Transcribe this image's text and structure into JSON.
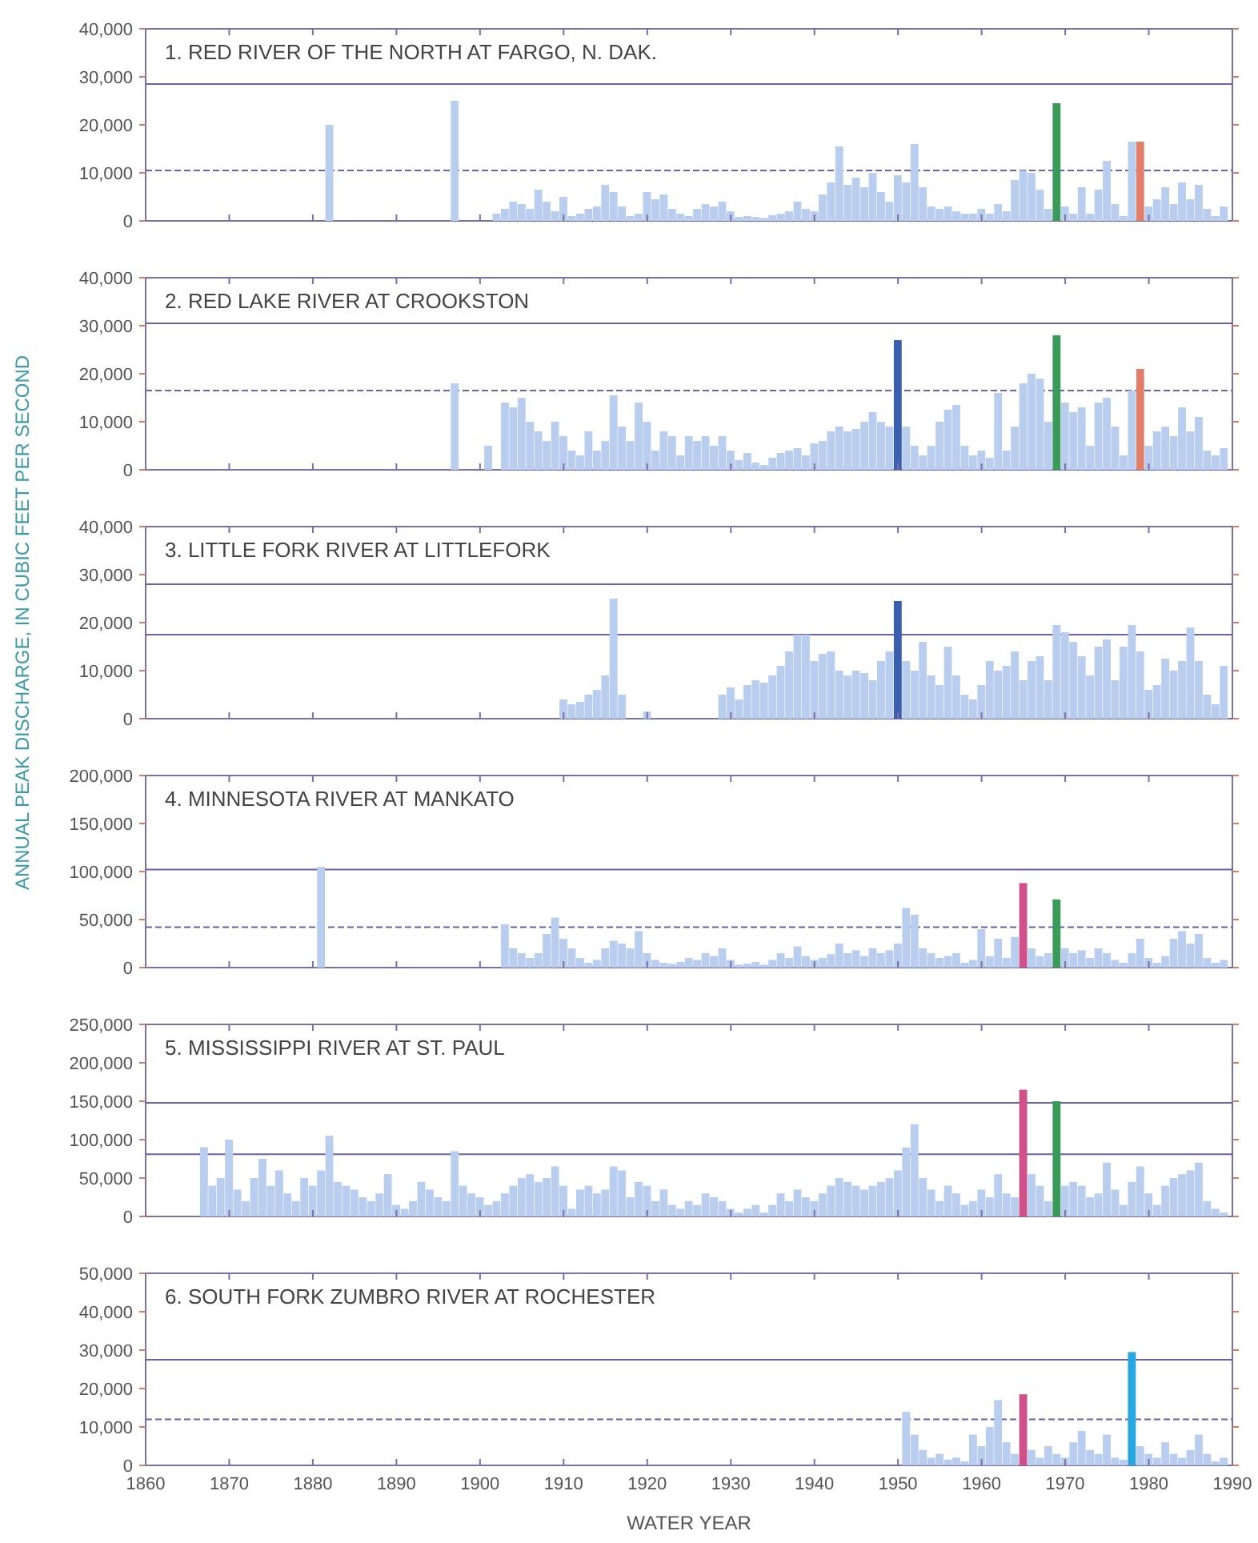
{
  "chart_data": [
    {
      "type": "bar",
      "title": "1.   RED RIVER OF THE NORTH AT FARGO, N. DAK.",
      "xlim": [
        1860,
        1990
      ],
      "xticks": [
        1860,
        1870,
        1880,
        1890,
        1900,
        1910,
        1920,
        1930,
        1940,
        1950,
        1960,
        1970,
        1980,
        1990
      ],
      "ylim": [
        0,
        40000
      ],
      "yticks": [
        {
          "value": 0,
          "label": "0"
        },
        {
          "value": 10000,
          "label": "10,000"
        },
        {
          "value": 20000,
          "label": "20,000"
        },
        {
          "value": 30000,
          "label": "30,000"
        },
        {
          "value": 40000,
          "label": "40,000"
        }
      ],
      "tick_labels": "y",
      "ref_lines": [
        {
          "axis": "y",
          "value": 28500,
          "line_style": "solid"
        },
        {
          "axis": "y",
          "value": 10500,
          "line_style": "dashed"
        }
      ],
      "series": [
        {
          "color": "#b9cdee",
          "x": [
            1882,
            1897,
            1902,
            1903,
            1904,
            1905,
            1906,
            1907,
            1908,
            1909,
            1910,
            1911,
            1912,
            1913,
            1914,
            1915,
            1916,
            1917,
            1918,
            1919,
            1920,
            1921,
            1922,
            1923,
            1924,
            1925,
            1926,
            1927,
            1928,
            1929,
            1930,
            1931,
            1932,
            1933,
            1934,
            1935,
            1936,
            1937,
            1938,
            1939,
            1940,
            1941,
            1942,
            1943,
            1944,
            1945,
            1946,
            1947,
            1948,
            1949,
            1950,
            1951,
            1952,
            1953,
            1954,
            1955,
            1956,
            1957,
            1958,
            1959,
            1960,
            1961,
            1962,
            1963,
            1964,
            1965,
            1966,
            1967,
            1968,
            1969,
            1970,
            1971,
            1972,
            1973,
            1974,
            1975,
            1976,
            1977,
            1978,
            1979,
            1980,
            1981,
            1982,
            1983,
            1984,
            1985,
            1986,
            1987,
            1988,
            1989
          ],
          "values": [
            20000,
            25000,
            1500,
            2500,
            4000,
            3500,
            2500,
            6500,
            4000,
            2000,
            5000,
            1000,
            1500,
            2500,
            3000,
            7500,
            6000,
            3000,
            1000,
            1500,
            6000,
            4500,
            5500,
            2500,
            1500,
            1000,
            2500,
            3500,
            3000,
            4000,
            2000,
            800,
            1000,
            800,
            600,
            1200,
            1500,
            2000,
            4000,
            2500,
            2000,
            5500,
            8000,
            15500,
            7500,
            9000,
            7000,
            10000,
            6000,
            4000,
            9500,
            8000,
            16000,
            7000,
            3000,
            2500,
            3000,
            2000,
            1500,
            1500,
            2500,
            1500,
            3500,
            2000,
            8500,
            10500,
            10000,
            6500,
            2500,
            null,
            3000,
            1500,
            7000,
            1500,
            6500,
            12500,
            3500,
            1000,
            16500,
            null,
            3000,
            4500,
            7000,
            3500,
            8000,
            4500,
            7500,
            2500,
            1000,
            3000
          ]
        },
        {
          "color": "#3a9a5a",
          "x": [
            1969
          ],
          "values": [
            24500
          ]
        },
        {
          "color": "#e0806a",
          "x": [
            1979
          ],
          "values": [
            16500
          ]
        }
      ]
    },
    {
      "type": "bar",
      "title": "2.   RED LAKE RIVER AT CROOKSTON",
      "xlim": [
        1860,
        1990
      ],
      "xticks": [
        1860,
        1870,
        1880,
        1890,
        1900,
        1910,
        1920,
        1930,
        1940,
        1950,
        1960,
        1970,
        1980,
        1990
      ],
      "ylim": [
        0,
        40000
      ],
      "yticks": [
        {
          "value": 0,
          "label": "0"
        },
        {
          "value": 10000,
          "label": "10,000"
        },
        {
          "value": 20000,
          "label": "20,000"
        },
        {
          "value": 30000,
          "label": "30,000"
        },
        {
          "value": 40000,
          "label": "40,000"
        }
      ],
      "tick_labels": "y",
      "ref_lines": [
        {
          "axis": "y",
          "value": 30500,
          "line_style": "solid"
        },
        {
          "axis": "y",
          "value": 16500,
          "line_style": "dashed"
        }
      ],
      "series": [
        {
          "color": "#b9cdee",
          "x": [
            1897,
            1901,
            1902,
            1903,
            1904,
            1905,
            1906,
            1907,
            1908,
            1909,
            1910,
            1911,
            1912,
            1913,
            1914,
            1915,
            1916,
            1917,
            1918,
            1919,
            1920,
            1921,
            1922,
            1923,
            1924,
            1925,
            1926,
            1927,
            1928,
            1929,
            1930,
            1931,
            1932,
            1933,
            1934,
            1935,
            1936,
            1937,
            1938,
            1939,
            1940,
            1941,
            1942,
            1943,
            1944,
            1945,
            1946,
            1947,
            1948,
            1949,
            1950,
            1951,
            1952,
            1953,
            1954,
            1955,
            1956,
            1957,
            1958,
            1959,
            1960,
            1961,
            1962,
            1963,
            1964,
            1965,
            1966,
            1967,
            1968,
            1969,
            1970,
            1971,
            1972,
            1973,
            1974,
            1975,
            1976,
            1977,
            1978,
            1979,
            1980,
            1981,
            1982,
            1983,
            1984,
            1985,
            1986,
            1987,
            1988,
            1989
          ],
          "values": [
            18000,
            5000,
            null,
            14000,
            13000,
            15000,
            10000,
            8000,
            6000,
            10000,
            7000,
            4000,
            3000,
            8000,
            4000,
            6000,
            15500,
            9000,
            6000,
            14000,
            10000,
            4000,
            8000,
            7000,
            3000,
            7000,
            6000,
            7000,
            5000,
            7000,
            4000,
            2000,
            3500,
            1500,
            1000,
            2500,
            3500,
            4000,
            4500,
            3000,
            5500,
            6000,
            8000,
            9000,
            8000,
            8500,
            10000,
            12000,
            10000,
            9000,
            null,
            9000,
            5000,
            3000,
            5000,
            10000,
            12500,
            13500,
            5000,
            3000,
            4000,
            2500,
            16000,
            4000,
            9000,
            18000,
            20000,
            19000,
            10000,
            null,
            14000,
            12000,
            13000,
            5000,
            14000,
            15000,
            9000,
            3000,
            16500,
            null,
            5000,
            8000,
            9000,
            7000,
            13000,
            8000,
            11000,
            4000,
            3000,
            4500
          ]
        },
        {
          "color": "#3a5fb0",
          "x": [
            1950
          ],
          "values": [
            27000
          ]
        },
        {
          "color": "#3a9a5a",
          "x": [
            1969
          ],
          "values": [
            28000
          ]
        },
        {
          "color": "#e0806a",
          "x": [
            1979
          ],
          "values": [
            21000
          ]
        }
      ]
    },
    {
      "type": "bar",
      "title": "3.   LITTLE FORK RIVER AT LITTLEFORK",
      "ylabel": "ANNUAL PEAK DISCHARGE, IN CUBIC FEET PER SECOND",
      "xlim": [
        1860,
        1990
      ],
      "xticks": [
        1860,
        1870,
        1880,
        1890,
        1900,
        1910,
        1920,
        1930,
        1940,
        1950,
        1960,
        1970,
        1980,
        1990
      ],
      "ylim": [
        0,
        40000
      ],
      "yticks": [
        {
          "value": 0,
          "label": "0"
        },
        {
          "value": 10000,
          "label": "10,000"
        },
        {
          "value": 20000,
          "label": "20,000"
        },
        {
          "value": 30000,
          "label": "30,000"
        },
        {
          "value": 40000,
          "label": "40,000"
        }
      ],
      "tick_labels": "y",
      "ref_lines": [
        {
          "axis": "y",
          "value": 28000,
          "line_style": "solid"
        },
        {
          "axis": "y",
          "value": 17500,
          "line_style": "solid"
        }
      ],
      "series": [
        {
          "color": "#b9cdee",
          "x": [
            1910,
            1911,
            1912,
            1913,
            1914,
            1915,
            1916,
            1917,
            1920,
            1929,
            1930,
            1931,
            1932,
            1933,
            1934,
            1935,
            1936,
            1937,
            1938,
            1939,
            1940,
            1941,
            1942,
            1943,
            1944,
            1945,
            1946,
            1947,
            1948,
            1949,
            1950,
            1951,
            1952,
            1953,
            1954,
            1955,
            1956,
            1957,
            1958,
            1959,
            1960,
            1961,
            1962,
            1963,
            1964,
            1965,
            1966,
            1967,
            1968,
            1969,
            1970,
            1971,
            1972,
            1973,
            1974,
            1975,
            1976,
            1977,
            1978,
            1979,
            1980,
            1981,
            1982,
            1983,
            1984,
            1985,
            1986,
            1987,
            1988,
            1989
          ],
          "values": [
            4000,
            3000,
            3500,
            5000,
            6000,
            9000,
            25000,
            5000,
            1500,
            5000,
            6500,
            4000,
            7000,
            8000,
            7500,
            9000,
            11000,
            14000,
            17500,
            17500,
            12000,
            13500,
            14000,
            10000,
            9000,
            10000,
            9500,
            8000,
            12000,
            14000,
            null,
            12000,
            10000,
            16000,
            9000,
            7000,
            15000,
            9000,
            5000,
            4000,
            7000,
            12000,
            10000,
            11000,
            14000,
            8000,
            12000,
            13000,
            8000,
            19500,
            18000,
            16000,
            13000,
            9000,
            15000,
            16500,
            8000,
            15000,
            19500,
            14000,
            6000,
            7000,
            12500,
            10000,
            12000,
            19000,
            12000,
            5000,
            3000,
            11000
          ]
        },
        {
          "color": "#3a5fb0",
          "x": [
            1950
          ],
          "values": [
            24500
          ]
        }
      ]
    },
    {
      "type": "bar",
      "title": "4.   MINNESOTA RIVER AT MANKATO",
      "xlim": [
        1860,
        1990
      ],
      "xticks": [
        1860,
        1870,
        1880,
        1890,
        1900,
        1910,
        1920,
        1930,
        1940,
        1950,
        1960,
        1970,
        1980,
        1990
      ],
      "ylim": [
        0,
        200000
      ],
      "yticks": [
        {
          "value": 0,
          "label": "0"
        },
        {
          "value": 50000,
          "label": "50,000"
        },
        {
          "value": 100000,
          "label": "100,000"
        },
        {
          "value": 150000,
          "label": "150,000"
        },
        {
          "value": 200000,
          "label": "200,000"
        }
      ],
      "tick_labels": "y",
      "ref_lines": [
        {
          "axis": "y",
          "value": 102000,
          "line_style": "solid"
        },
        {
          "axis": "y",
          "value": 42000,
          "line_style": "dashed"
        }
      ],
      "series": [
        {
          "color": "#b9cdee",
          "x": [
            1881,
            1903,
            1904,
            1905,
            1906,
            1907,
            1908,
            1909,
            1910,
            1911,
            1912,
            1913,
            1914,
            1915,
            1916,
            1917,
            1918,
            1919,
            1920,
            1921,
            1922,
            1923,
            1924,
            1925,
            1926,
            1927,
            1928,
            1929,
            1930,
            1931,
            1932,
            1933,
            1934,
            1935,
            1936,
            1937,
            1938,
            1939,
            1940,
            1941,
            1942,
            1943,
            1944,
            1945,
            1946,
            1947,
            1948,
            1949,
            1950,
            1951,
            1952,
            1953,
            1954,
            1955,
            1956,
            1957,
            1958,
            1959,
            1960,
            1961,
            1962,
            1963,
            1964,
            1965,
            1966,
            1967,
            1968,
            1969,
            1970,
            1971,
            1972,
            1973,
            1974,
            1975,
            1976,
            1977,
            1978,
            1979,
            1980,
            1981,
            1982,
            1983,
            1984,
            1985,
            1986,
            1987,
            1988,
            1989
          ],
          "values": [
            105000,
            45000,
            20000,
            15000,
            10000,
            15000,
            35000,
            52000,
            30000,
            20000,
            10000,
            5000,
            8000,
            20000,
            28000,
            25000,
            20000,
            38000,
            15000,
            8000,
            5000,
            4000,
            6000,
            10000,
            8000,
            15000,
            12000,
            20000,
            8000,
            3000,
            4000,
            6000,
            3000,
            8000,
            15000,
            10000,
            22000,
            12000,
            8000,
            10000,
            14000,
            25000,
            15000,
            18000,
            12000,
            20000,
            15000,
            18000,
            25000,
            62000,
            55000,
            20000,
            15000,
            10000,
            12000,
            15000,
            5000,
            8000,
            40000,
            12000,
            30000,
            10000,
            32000,
            null,
            20000,
            12000,
            15000,
            null,
            20000,
            15000,
            18000,
            10000,
            20000,
            15000,
            8000,
            5000,
            15000,
            30000,
            10000,
            5000,
            12000,
            30000,
            38000,
            25000,
            35000,
            10000,
            5000,
            8000
          ]
        },
        {
          "color": "#d0508a",
          "x": [
            1965
          ],
          "values": [
            88000
          ]
        },
        {
          "color": "#3a9a5a",
          "x": [
            1969
          ],
          "values": [
            71000
          ]
        }
      ]
    },
    {
      "type": "bar",
      "title": "5.   MISSISSIPPI RIVER AT ST. PAUL",
      "xlim": [
        1860,
        1990
      ],
      "xticks": [
        1860,
        1870,
        1880,
        1890,
        1900,
        1910,
        1920,
        1930,
        1940,
        1950,
        1960,
        1970,
        1980,
        1990
      ],
      "ylim": [
        0,
        250000
      ],
      "yticks": [
        {
          "value": 0,
          "label": "0"
        },
        {
          "value": 50000,
          "label": "50,000"
        },
        {
          "value": 100000,
          "label": "100,000"
        },
        {
          "value": 150000,
          "label": "150,000"
        },
        {
          "value": 200000,
          "label": "200,000"
        },
        {
          "value": 250000,
          "label": "250,000"
        }
      ],
      "tick_labels": "y",
      "ref_lines": [
        {
          "axis": "y",
          "value": 148000,
          "line_style": "solid"
        },
        {
          "axis": "y",
          "value": 81000,
          "line_style": "solid"
        }
      ],
      "series": [
        {
          "color": "#b9cdee",
          "x": [
            1867,
            1868,
            1869,
            1870,
            1871,
            1872,
            1873,
            1874,
            1875,
            1876,
            1877,
            1878,
            1879,
            1880,
            1881,
            1882,
            1883,
            1884,
            1885,
            1886,
            1887,
            1888,
            1889,
            1890,
            1891,
            1892,
            1893,
            1894,
            1895,
            1896,
            1897,
            1898,
            1899,
            1900,
            1901,
            1902,
            1903,
            1904,
            1905,
            1906,
            1907,
            1908,
            1909,
            1910,
            1911,
            1912,
            1913,
            1914,
            1915,
            1916,
            1917,
            1918,
            1919,
            1920,
            1921,
            1922,
            1923,
            1924,
            1925,
            1926,
            1927,
            1928,
            1929,
            1930,
            1931,
            1932,
            1933,
            1934,
            1935,
            1936,
            1937,
            1938,
            1939,
            1940,
            1941,
            1942,
            1943,
            1944,
            1945,
            1946,
            1947,
            1948,
            1949,
            1950,
            1951,
            1952,
            1953,
            1954,
            1955,
            1956,
            1957,
            1958,
            1959,
            1960,
            1961,
            1962,
            1963,
            1964,
            1965,
            1966,
            1967,
            1968,
            1969,
            1970,
            1971,
            1972,
            1973,
            1974,
            1975,
            1976,
            1977,
            1978,
            1979,
            1980,
            1981,
            1982,
            1983,
            1984,
            1985,
            1986,
            1987,
            1988,
            1989
          ],
          "values": [
            90000,
            40000,
            50000,
            100000,
            35000,
            20000,
            50000,
            75000,
            40000,
            60000,
            30000,
            20000,
            50000,
            40000,
            60000,
            105000,
            45000,
            40000,
            35000,
            25000,
            20000,
            30000,
            55000,
            15000,
            10000,
            20000,
            45000,
            35000,
            25000,
            20000,
            85000,
            40000,
            30000,
            25000,
            15000,
            20000,
            30000,
            40000,
            50000,
            55000,
            45000,
            50000,
            65000,
            40000,
            10000,
            35000,
            40000,
            30000,
            35000,
            65000,
            60000,
            25000,
            45000,
            40000,
            20000,
            35000,
            15000,
            10000,
            20000,
            15000,
            30000,
            25000,
            20000,
            10000,
            5000,
            10000,
            15000,
            5000,
            15000,
            30000,
            20000,
            35000,
            25000,
            20000,
            30000,
            40000,
            50000,
            45000,
            40000,
            35000,
            40000,
            45000,
            50000,
            60000,
            90000,
            120000,
            50000,
            35000,
            20000,
            40000,
            30000,
            15000,
            20000,
            35000,
            25000,
            55000,
            30000,
            25000,
            null,
            55000,
            40000,
            20000,
            null,
            40000,
            45000,
            40000,
            25000,
            30000,
            70000,
            35000,
            15000,
            45000,
            65000,
            30000,
            15000,
            40000,
            50000,
            55000,
            60000,
            70000,
            20000,
            10000,
            5000
          ]
        },
        {
          "color": "#d0508a",
          "x": [
            1965
          ],
          "values": [
            165000
          ]
        },
        {
          "color": "#3a9a5a",
          "x": [
            1969
          ],
          "values": [
            150000
          ]
        }
      ]
    },
    {
      "type": "bar",
      "title": "6.   SOUTH FORK ZUMBRO RIVER AT ROCHESTER",
      "xlabel": "WATER YEAR",
      "xlim": [
        1860,
        1990
      ],
      "xticks": [
        1860,
        1870,
        1880,
        1890,
        1900,
        1910,
        1920,
        1930,
        1940,
        1950,
        1960,
        1970,
        1980,
        1990
      ],
      "ylim": [
        0,
        50000
      ],
      "yticks": [
        {
          "value": 0,
          "label": "0"
        },
        {
          "value": 10000,
          "label": "10,000"
        },
        {
          "value": 20000,
          "label": "20,000"
        },
        {
          "value": 30000,
          "label": "30,000"
        },
        {
          "value": 40000,
          "label": "40,000"
        },
        {
          "value": 50000,
          "label": "50,000"
        }
      ],
      "ref_lines": [
        {
          "axis": "y",
          "value": 27500,
          "line_style": "solid"
        },
        {
          "axis": "y",
          "value": 12000,
          "line_style": "dashed"
        }
      ],
      "series": [
        {
          "color": "#b9cdee",
          "x": [
            1951,
            1952,
            1953,
            1954,
            1955,
            1956,
            1957,
            1958,
            1959,
            1960,
            1961,
            1962,
            1963,
            1964,
            1965,
            1966,
            1967,
            1968,
            1969,
            1970,
            1971,
            1972,
            1973,
            1974,
            1975,
            1976,
            1977,
            1978,
            1979,
            1980,
            1981,
            1982,
            1983,
            1984,
            1985,
            1986,
            1987,
            1988,
            1989
          ],
          "values": [
            14000,
            8000,
            4000,
            2000,
            3000,
            1500,
            2000,
            1000,
            8000,
            5000,
            10000,
            17000,
            6000,
            3000,
            null,
            4000,
            2000,
            5000,
            3000,
            2000,
            6000,
            9000,
            4000,
            3000,
            8000,
            2000,
            1500,
            null,
            5000,
            3000,
            2000,
            6000,
            3000,
            2000,
            4000,
            8000,
            3000,
            1000,
            2000
          ]
        },
        {
          "color": "#d0508a",
          "x": [
            1965
          ],
          "values": [
            18500
          ]
        },
        {
          "color": "#28a8e0",
          "x": [
            1978
          ],
          "values": [
            29500
          ]
        }
      ]
    }
  ]
}
